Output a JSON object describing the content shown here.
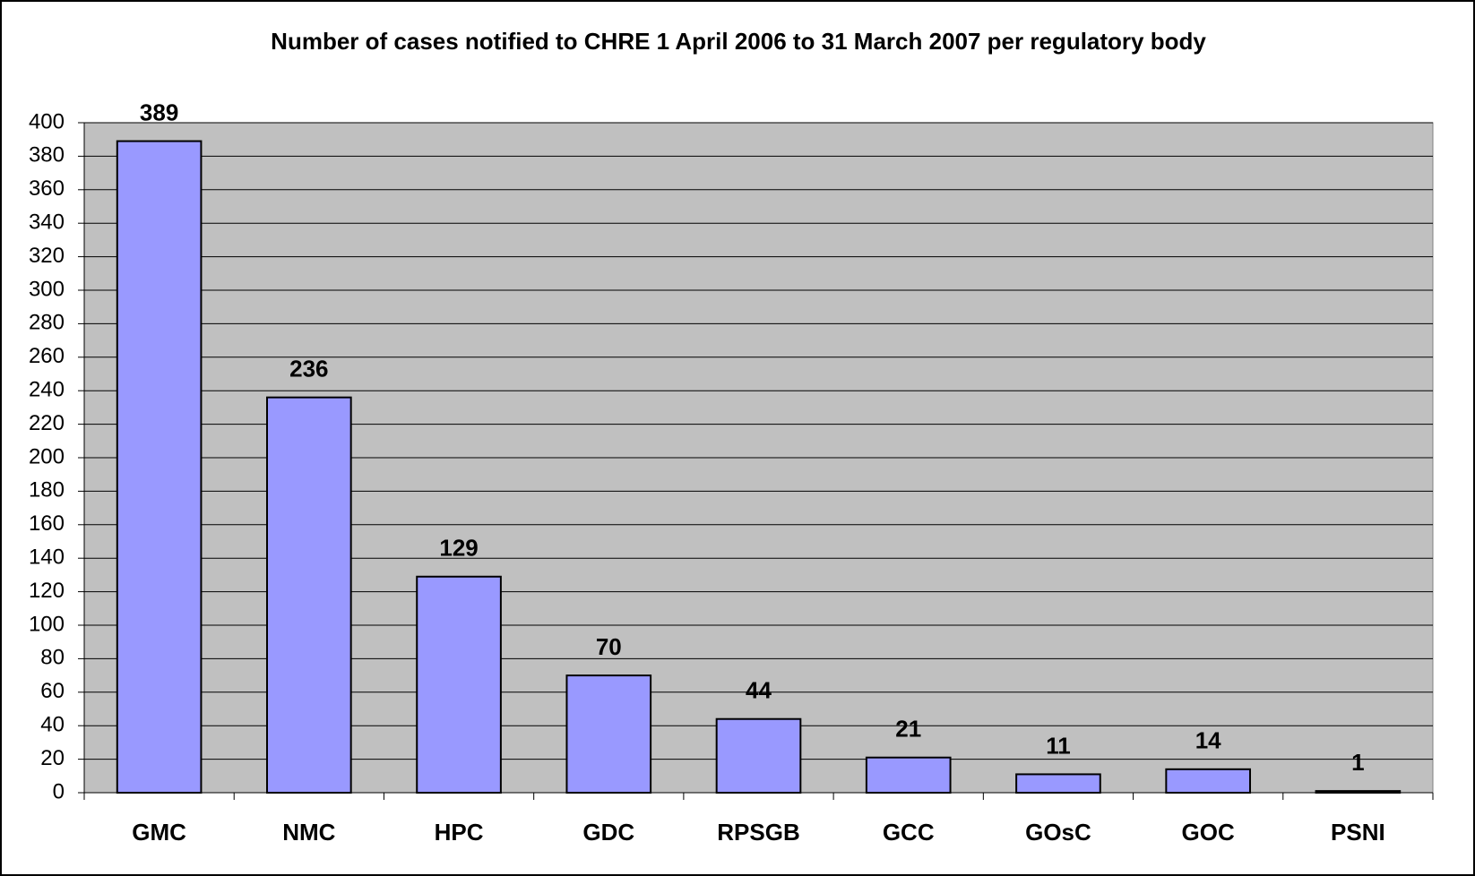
{
  "chart_data": {
    "type": "bar",
    "title": "Number of cases notified to CHRE 1 April 2006 to 31 March 2007 per regulatory body",
    "categories": [
      "GMC",
      "NMC",
      "HPC",
      "GDC",
      "RPSGB",
      "GCC",
      "GOsC",
      "GOC",
      "PSNI"
    ],
    "values": [
      389,
      236,
      129,
      70,
      44,
      21,
      11,
      14,
      1
    ],
    "color": "#9999ff",
    "ylim": [
      0,
      400
    ],
    "yticks": [
      0,
      20,
      40,
      60,
      80,
      100,
      120,
      140,
      160,
      180,
      200,
      220,
      240,
      260,
      280,
      300,
      320,
      340,
      360,
      380,
      400
    ],
    "grid": true
  }
}
